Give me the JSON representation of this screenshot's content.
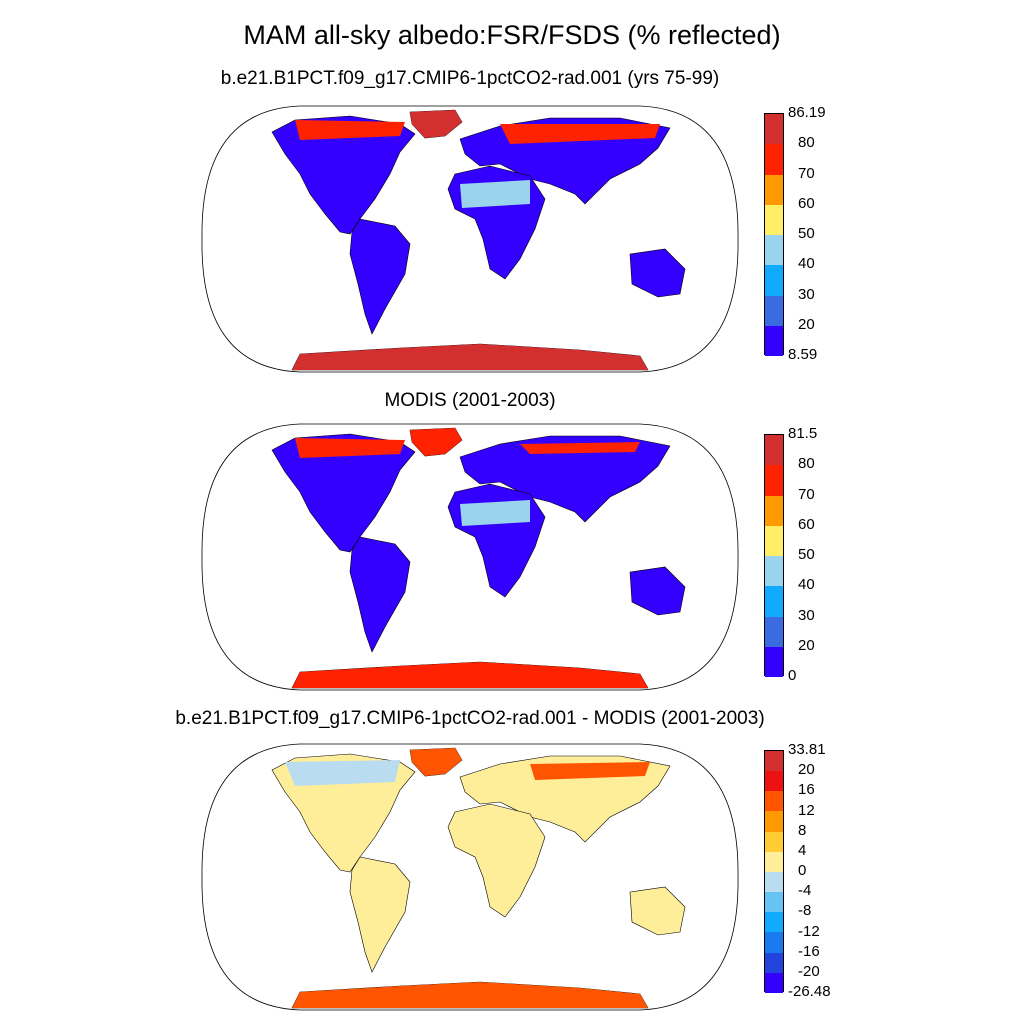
{
  "title": "MAM all-sky albedo:FSR/FSDS (% reflected)",
  "panels": [
    {
      "title": "b.e21.B1PCT.f09_g17.CMIP6-1pctCO2-rad.001 (yrs 75-99)",
      "colorbar": {
        "labels": [
          "86.19",
          "80",
          "70",
          "60",
          "50",
          "40",
          "30",
          "20",
          "8.59"
        ],
        "colors": [
          "#d42f2f",
          "#ff2200",
          "#ff9900",
          "#ffee66",
          "#99d3ee",
          "#10aaff",
          "#3b6be0",
          "#3300ff"
        ]
      }
    },
    {
      "title": "MODIS (2001-2003)",
      "colorbar": {
        "labels": [
          "81.5",
          "80",
          "70",
          "60",
          "50",
          "40",
          "30",
          "20",
          "0"
        ],
        "colors": [
          "#d42f2f",
          "#ff2200",
          "#ff9900",
          "#ffee66",
          "#99d3ee",
          "#10aaff",
          "#3b6be0",
          "#3300ff"
        ]
      }
    },
    {
      "title": "b.e21.B1PCT.f09_g17.CMIP6-1pctCO2-rad.001 - MODIS (2001-2003)",
      "colorbar": {
        "labels": [
          "33.81",
          "20",
          "16",
          "12",
          "8",
          "4",
          "0",
          "-4",
          "-8",
          "-12",
          "-16",
          "-20",
          "-26.48"
        ],
        "colors": [
          "#d42f2f",
          "#ee1111",
          "#ff5500",
          "#ff9900",
          "#ffcc33",
          "#ffee99",
          "#b9dcf0",
          "#66c4f4",
          "#10aaff",
          "#1a7af0",
          "#2244dd",
          "#3300ff"
        ]
      }
    }
  ],
  "fills": {
    "low": "#3300ff",
    "mid": "#99d3ee",
    "high": "#ff2200",
    "ice": "#d42f2f",
    "diff_land": "#ffee99",
    "diff_neg": "#b9dcf0",
    "diff_pos": "#ff5500",
    "ocean": "#ffffff"
  }
}
